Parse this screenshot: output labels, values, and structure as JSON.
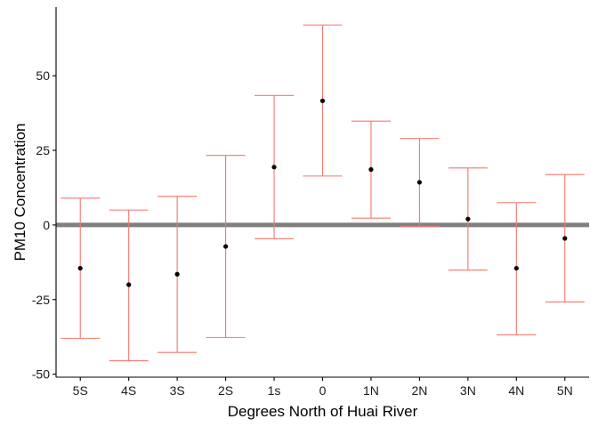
{
  "chart_data": {
    "type": "errorbar",
    "xlabel": "Degrees North of Huai River",
    "ylabel": "PM10 Concentration",
    "categories": [
      "5S",
      "4S",
      "3S",
      "2S",
      "1s",
      "0",
      "1N",
      "2N",
      "3N",
      "4N",
      "5N"
    ],
    "points": [
      {
        "x": "5S",
        "y": -14.5,
        "lower": -38.0,
        "upper": 9.0
      },
      {
        "x": "4S",
        "y": -20.0,
        "lower": -45.5,
        "upper": 5.0
      },
      {
        "x": "3S",
        "y": -16.5,
        "lower": -42.7,
        "upper": 9.6
      },
      {
        "x": "2S",
        "y": -7.2,
        "lower": -37.7,
        "upper": 23.3
      },
      {
        "x": "1s",
        "y": 19.4,
        "lower": -4.6,
        "upper": 43.4
      },
      {
        "x": "0",
        "y": 41.6,
        "lower": 16.4,
        "upper": 67.0
      },
      {
        "x": "1N",
        "y": 18.6,
        "lower": 2.3,
        "upper": 34.8
      },
      {
        "x": "2N",
        "y": 14.3,
        "lower": -0.4,
        "upper": 29.0
      },
      {
        "x": "3N",
        "y": 2.0,
        "lower": -15.1,
        "upper": 19.1
      },
      {
        "x": "4N",
        "y": -14.5,
        "lower": -36.8,
        "upper": 7.5
      },
      {
        "x": "5N",
        "y": -4.5,
        "lower": -25.8,
        "upper": 16.9
      }
    ],
    "yticks": [
      -50,
      -25,
      0,
      25,
      50
    ],
    "ylim": [
      -51,
      73
    ],
    "reference_line": 0,
    "colors": {
      "errorbar": "#F8766D",
      "point": "#000000",
      "reference_line": "#7f7f7f",
      "axis": "#000000"
    },
    "grid": false,
    "legend": "none"
  }
}
